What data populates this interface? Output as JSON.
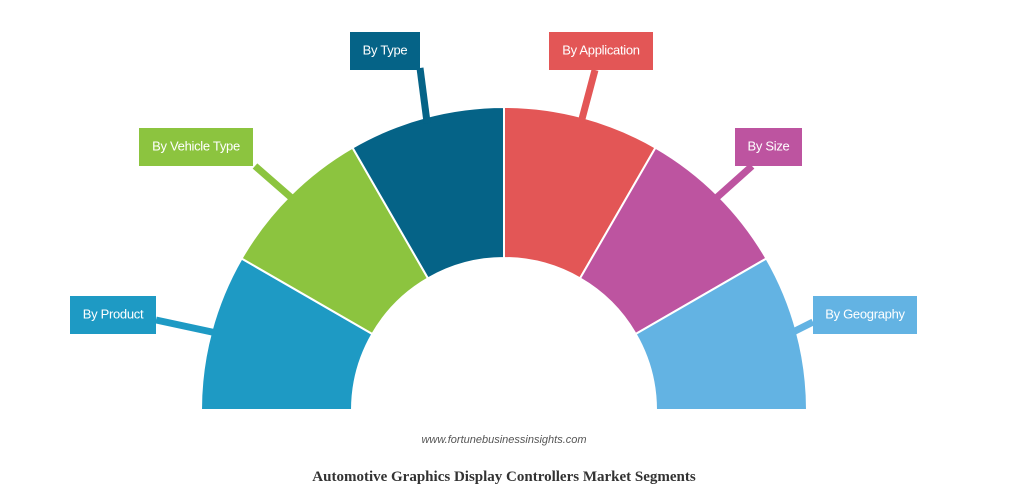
{
  "title": "Automotive Graphics Display Controllers Market Segments",
  "source": "www.fortunebusinessinsights.com",
  "segments": [
    {
      "label": "By Product",
      "color": "#1e9ac4"
    },
    {
      "label": "By Vehicle Type",
      "color": "#8cc43f"
    },
    {
      "label": "By Type",
      "color": "#056387"
    },
    {
      "label": "By Application",
      "color": "#e35656"
    },
    {
      "label": "By Size",
      "color": "#bd54a0"
    },
    {
      "label": "By Geography",
      "color": "#63b3e3"
    }
  ]
}
